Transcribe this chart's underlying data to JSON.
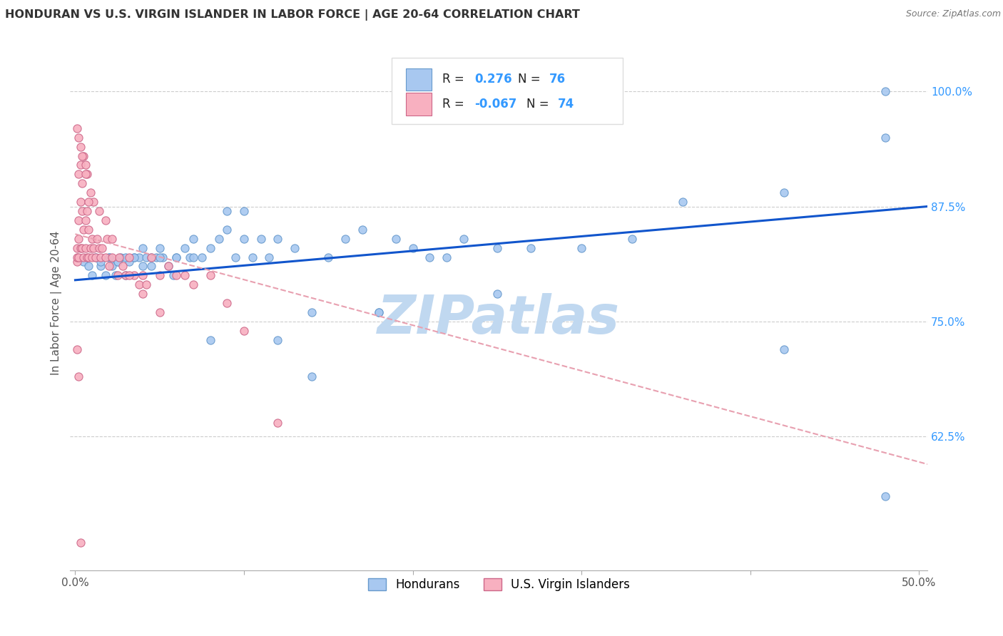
{
  "title": "HONDURAN VS U.S. VIRGIN ISLANDER IN LABOR FORCE | AGE 20-64 CORRELATION CHART",
  "source": "Source: ZipAtlas.com",
  "ylabel": "In Labor Force | Age 20-64",
  "x_ticks": [
    0.0,
    0.1,
    0.2,
    0.3,
    0.4,
    0.5
  ],
  "x_tick_labels": [
    "0.0%",
    "",
    "",
    "",
    "",
    "50.0%"
  ],
  "y_ticks_right": [
    0.625,
    0.75,
    0.875,
    1.0
  ],
  "y_tick_labels_right": [
    "62.5%",
    "75.0%",
    "87.5%",
    "100.0%"
  ],
  "xlim": [
    -0.003,
    0.505
  ],
  "ylim": [
    0.48,
    1.06
  ],
  "blue_line_color": "#1155cc",
  "pink_line_color": "#e8a0b0",
  "blue_dot_color": "#a8c8f0",
  "pink_dot_color": "#f8b0c0",
  "dot_edge_blue": "#6699cc",
  "dot_edge_pink": "#cc6688",
  "watermark": "ZIPatlas",
  "watermark_color": "#c0d8f0",
  "grid_color": "#cccccc",
  "grid_linestyle": "--",
  "blue_scatter_x": [
    0.005,
    0.008,
    0.01,
    0.012,
    0.015,
    0.018,
    0.02,
    0.022,
    0.024,
    0.025,
    0.027,
    0.03,
    0.032,
    0.035,
    0.038,
    0.04,
    0.042,
    0.045,
    0.048,
    0.05,
    0.052,
    0.055,
    0.058,
    0.06,
    0.065,
    0.068,
    0.07,
    0.075,
    0.08,
    0.085,
    0.09,
    0.095,
    0.1,
    0.105,
    0.11,
    0.115,
    0.12,
    0.13,
    0.14,
    0.15,
    0.16,
    0.17,
    0.18,
    0.19,
    0.2,
    0.21,
    0.22,
    0.23,
    0.25,
    0.27,
    0.3,
    0.33,
    0.36,
    0.42,
    0.48,
    0.48,
    0.015,
    0.02,
    0.025,
    0.03,
    0.035,
    0.04,
    0.045,
    0.05,
    0.06,
    0.07,
    0.08,
    0.09,
    0.1,
    0.12,
    0.14,
    0.18,
    0.25,
    0.42,
    0.48
  ],
  "blue_scatter_y": [
    0.815,
    0.81,
    0.8,
    0.82,
    0.81,
    0.8,
    0.82,
    0.81,
    0.8,
    0.815,
    0.82,
    0.8,
    0.815,
    0.82,
    0.82,
    0.83,
    0.82,
    0.81,
    0.82,
    0.83,
    0.82,
    0.81,
    0.8,
    0.82,
    0.83,
    0.82,
    0.84,
    0.82,
    0.83,
    0.84,
    0.85,
    0.82,
    0.84,
    0.82,
    0.84,
    0.82,
    0.84,
    0.83,
    0.76,
    0.82,
    0.84,
    0.85,
    0.76,
    0.84,
    0.83,
    0.82,
    0.82,
    0.84,
    0.83,
    0.83,
    0.83,
    0.84,
    0.88,
    0.89,
    0.95,
    1.0,
    0.815,
    0.82,
    0.815,
    0.82,
    0.82,
    0.81,
    0.82,
    0.82,
    0.82,
    0.82,
    0.73,
    0.87,
    0.87,
    0.73,
    0.69,
    0.76,
    0.78,
    0.72,
    0.56
  ],
  "pink_scatter_x": [
    0.001,
    0.001,
    0.001,
    0.002,
    0.002,
    0.002,
    0.003,
    0.003,
    0.004,
    0.004,
    0.005,
    0.005,
    0.006,
    0.006,
    0.007,
    0.007,
    0.008,
    0.008,
    0.009,
    0.01,
    0.01,
    0.011,
    0.012,
    0.013,
    0.014,
    0.015,
    0.016,
    0.018,
    0.019,
    0.02,
    0.022,
    0.025,
    0.028,
    0.03,
    0.032,
    0.035,
    0.038,
    0.04,
    0.042,
    0.045,
    0.05,
    0.055,
    0.06,
    0.065,
    0.07,
    0.08,
    0.09,
    0.1,
    0.12,
    0.002,
    0.003,
    0.004,
    0.005,
    0.006,
    0.007,
    0.009,
    0.011,
    0.014,
    0.018,
    0.022,
    0.026,
    0.032,
    0.04,
    0.05,
    0.001,
    0.002,
    0.003,
    0.004,
    0.006,
    0.008,
    0.001,
    0.002,
    0.003
  ],
  "pink_scatter_y": [
    0.815,
    0.82,
    0.83,
    0.82,
    0.84,
    0.86,
    0.83,
    0.88,
    0.83,
    0.87,
    0.82,
    0.85,
    0.83,
    0.86,
    0.82,
    0.87,
    0.82,
    0.85,
    0.83,
    0.82,
    0.84,
    0.83,
    0.82,
    0.84,
    0.83,
    0.82,
    0.83,
    0.82,
    0.84,
    0.81,
    0.82,
    0.8,
    0.81,
    0.8,
    0.82,
    0.8,
    0.79,
    0.8,
    0.79,
    0.82,
    0.8,
    0.81,
    0.8,
    0.8,
    0.79,
    0.8,
    0.77,
    0.74,
    0.64,
    0.91,
    0.92,
    0.9,
    0.93,
    0.92,
    0.91,
    0.89,
    0.88,
    0.87,
    0.86,
    0.84,
    0.82,
    0.8,
    0.78,
    0.76,
    0.96,
    0.95,
    0.94,
    0.93,
    0.91,
    0.88,
    0.72,
    0.69,
    0.51
  ],
  "blue_trend_x0": 0.0,
  "blue_trend_y0": 0.795,
  "blue_trend_x1": 0.505,
  "blue_trend_y1": 0.875,
  "pink_trend_x0": 0.0,
  "pink_trend_y0": 0.845,
  "pink_trend_x1": 0.505,
  "pink_trend_y1": 0.595
}
